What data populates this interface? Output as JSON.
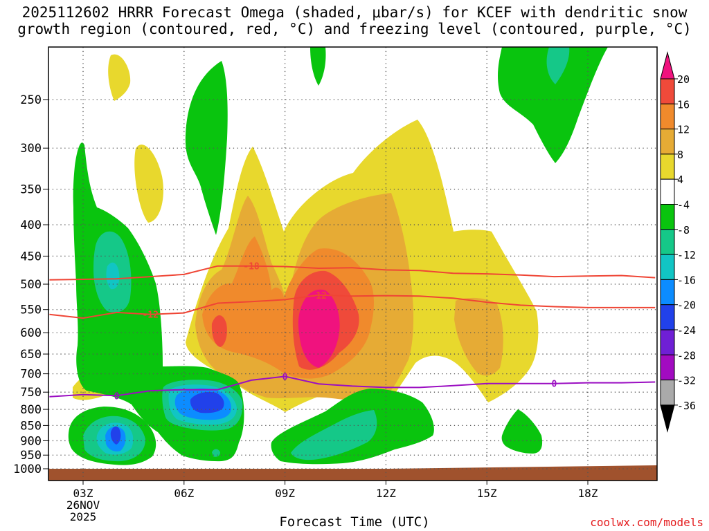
{
  "title_line1": "2025112602 HRRR Forecast Omega (shaded, μbar/s) for KCEF with dendritic snow",
  "title_line2": "growth region (contoured, red, °C) and freezing level (contoured, purple, °C)",
  "xlabel": "Forecast Time (UTC)",
  "credit": "coolwx.com/models",
  "chart_data": {
    "type": "contour",
    "title": "2025112602 HRRR Forecast Omega for KCEF",
    "x_unit": "forecast hour (UTC)",
    "x_range": [
      2,
      20
    ],
    "y_unit": "pressure (mb)",
    "y_range": [
      1030,
      205
    ],
    "y_ticks": [
      250,
      300,
      350,
      400,
      450,
      500,
      550,
      600,
      650,
      700,
      750,
      800,
      850,
      900,
      950,
      1000
    ],
    "x_ticks": [
      {
        "hour": 3,
        "label": "03Z"
      },
      {
        "hour": 6,
        "label": "06Z"
      },
      {
        "hour": 9,
        "label": "09Z"
      },
      {
        "hour": 12,
        "label": "12Z"
      },
      {
        "hour": 15,
        "label": "15Z"
      },
      {
        "hour": 18,
        "label": "18Z"
      }
    ],
    "date_labels": [
      "26NOV",
      "2025"
    ],
    "colorbar": {
      "labels": [
        "20",
        "16",
        "12",
        "8",
        "4",
        "-4",
        "-8",
        "-12",
        "-16",
        "-20",
        "-24",
        "-28",
        "-32",
        "-36"
      ],
      "colors": [
        "#f0127e",
        "#ef4a3a",
        "#f08a2c",
        "#e6ab35",
        "#e8d82d",
        "#ffffff",
        "#09c40e",
        "#15c888",
        "#11c5c4",
        "#0c8cff",
        "#2141ea",
        "#6f1fd5",
        "#a20bc1",
        "#aaaaaa",
        "#000000"
      ]
    },
    "series": [
      {
        "name": "dgz_top",
        "label": "-18",
        "color": "#ef4535",
        "points": [
          [
            2,
            492
          ],
          [
            3,
            491
          ],
          [
            4,
            490
          ],
          [
            5,
            486
          ],
          [
            6,
            482
          ],
          [
            7,
            467
          ],
          [
            8,
            467
          ],
          [
            9,
            468
          ],
          [
            10,
            471
          ],
          [
            11,
            470
          ],
          [
            12,
            474
          ],
          [
            13,
            475
          ],
          [
            14,
            480
          ],
          [
            15,
            481
          ],
          [
            16,
            483
          ],
          [
            17,
            486
          ],
          [
            18,
            485
          ],
          [
            19,
            484
          ],
          [
            20,
            488
          ]
        ]
      },
      {
        "name": "dgz_bottom",
        "label": "-12",
        "color": "#ef4535",
        "points": [
          [
            2,
            560
          ],
          [
            3,
            568
          ],
          [
            4,
            556
          ],
          [
            5,
            560
          ],
          [
            6,
            557
          ],
          [
            7,
            537
          ],
          [
            8,
            534
          ],
          [
            9,
            530
          ],
          [
            10,
            521
          ],
          [
            11,
            523
          ],
          [
            12,
            522
          ],
          [
            13,
            523
          ],
          [
            14,
            527
          ],
          [
            15,
            535
          ],
          [
            16,
            541
          ],
          [
            17,
            544
          ],
          [
            18,
            546
          ],
          [
            19,
            546
          ],
          [
            20,
            546
          ]
        ]
      },
      {
        "name": "freezing_level",
        "label": "0",
        "color": "#9b0ec2",
        "points": [
          [
            2,
            763
          ],
          [
            3,
            757
          ],
          [
            4,
            760
          ],
          [
            5,
            746
          ],
          [
            6,
            743
          ],
          [
            7,
            743
          ],
          [
            8,
            717
          ],
          [
            9,
            707
          ],
          [
            10,
            727
          ],
          [
            11,
            733
          ],
          [
            12,
            737
          ],
          [
            13,
            737
          ],
          [
            14,
            732
          ],
          [
            15,
            726
          ],
          [
            16,
            726
          ],
          [
            17,
            726
          ],
          [
            18,
            724
          ],
          [
            19,
            724
          ],
          [
            20,
            722
          ]
        ]
      }
    ],
    "omega_regions": [
      {
        "hour": 3.9,
        "pressure": 195,
        "value": 4
      },
      {
        "hour": 5.6,
        "pressure": 340,
        "value": 4
      },
      {
        "hour": 3.7,
        "pressure": 470,
        "value": -12
      },
      {
        "hour": 6.9,
        "pressure": 270,
        "value": -4
      },
      {
        "hour": 9.4,
        "pressure": 175,
        "value": -4
      },
      {
        "hour": 8.4,
        "pressure": 550,
        "value": 8
      },
      {
        "hour": 6.9,
        "pressure": 580,
        "value": 16
      },
      {
        "hour": 10.1,
        "pressure": 560,
        "value": 20
      },
      {
        "hour": 11.5,
        "pressure": 450,
        "value": 8
      },
      {
        "hour": 14.9,
        "pressure": 620,
        "value": 8
      },
      {
        "hour": 17.0,
        "pressure": 200,
        "value": -4
      },
      {
        "hour": 6.9,
        "pressure": 790,
        "value": -20
      },
      {
        "hour": 4.0,
        "pressure": 880,
        "value": -24
      },
      {
        "hour": 11.2,
        "pressure": 880,
        "value": -8
      },
      {
        "hour": 15.8,
        "pressure": 890,
        "value": -4
      }
    ],
    "ground_color": "#a0522d"
  }
}
